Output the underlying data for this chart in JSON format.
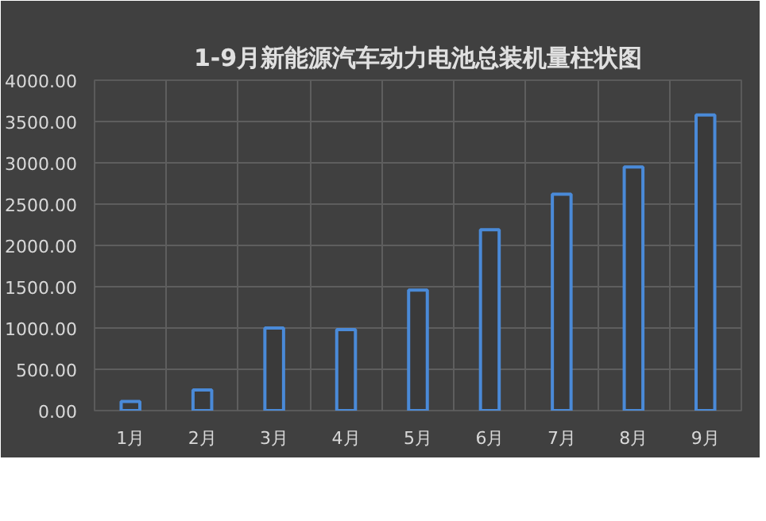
{
  "chart_data": {
    "type": "bar",
    "title": "1-9月新能源汽车动力电池总装机量柱状图",
    "categories": [
      "1月",
      "2月",
      "3月",
      "4月",
      "5月",
      "6月",
      "7月",
      "8月",
      "9月"
    ],
    "values": [
      110,
      250,
      1000,
      980,
      1460,
      2190,
      2620,
      2950,
      3580
    ],
    "color": "#4a8ad8",
    "ylim": [
      0,
      4000
    ],
    "yticks": [
      {
        "value": 0,
        "label": "0.00"
      },
      {
        "value": 500,
        "label": "500.00"
      },
      {
        "value": 1000,
        "label": "1000.00"
      },
      {
        "value": 1500,
        "label": "1500.00"
      },
      {
        "value": 2000,
        "label": "2000.00"
      },
      {
        "value": 2500,
        "label": "2500.00"
      },
      {
        "value": 3000,
        "label": "3000.00"
      },
      {
        "value": 3500,
        "label": "3500.00"
      },
      {
        "value": 4000,
        "label": "4000.00"
      }
    ],
    "grid": true
  }
}
